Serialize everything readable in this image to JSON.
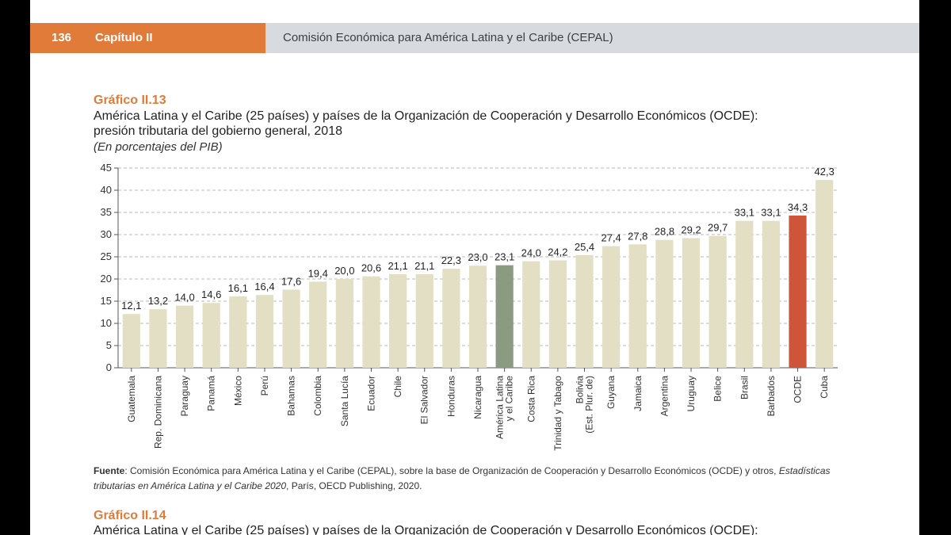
{
  "header": {
    "page_number": "136",
    "chapter": "Capítulo II",
    "publisher": "Comisión Económica para América Latina y el Caribe (CEPAL)"
  },
  "figure": {
    "label": "Gráfico II.13",
    "title_line1": "América Latina y el Caribe (25 países) y países de la Organización de Cooperación y Desarrollo Económicos (OCDE):",
    "title_line2": "presión tributaria del gobierno general, 2018",
    "subtitle": "(En porcentajes del PIB)"
  },
  "source": {
    "label": "Fuente",
    "text_before": "Comisión Económica para América Latina y el Caribe (CEPAL), sobre la base de Organización de Cooperación y Desarrollo Económicos (OCDE) y otros, ",
    "italic": "Estadísticas tributarias en América Latina y el Caribe 2020",
    "text_after": ", París, OECD Publishing, 2020."
  },
  "next_figure": {
    "label": "Gráfico II.14",
    "title_line1": "América Latina y el Caribe (25 países) y países de la Organización de Cooperación y Desarrollo Económicos (OCDE):"
  },
  "colors": {
    "default_bar": "#e3dfc4",
    "regional_average_bar": "#8a9b82",
    "ocde_bar": "#cf553a",
    "accent": "#e07b39"
  },
  "chart_data": {
    "type": "bar",
    "ylim": [
      0,
      45
    ],
    "yticks": [
      0,
      5,
      10,
      15,
      20,
      25,
      30,
      35,
      40,
      45
    ],
    "grid": "horizontal dashed",
    "categories": [
      [
        "Guatemala"
      ],
      [
        "Rep. Dominicana"
      ],
      [
        "Paraguay"
      ],
      [
        "Panamá"
      ],
      [
        "México"
      ],
      [
        "Perú"
      ],
      [
        "Bahamas"
      ],
      [
        "Colombia"
      ],
      [
        "Santa Lucía"
      ],
      [
        "Ecuador"
      ],
      [
        "Chile"
      ],
      [
        "El Salvador"
      ],
      [
        "Honduras"
      ],
      [
        "Nicaragua"
      ],
      [
        "América Latina",
        "y el Caribe"
      ],
      [
        "Costa Rica"
      ],
      [
        "Trinidad y Tabago"
      ],
      [
        "Bolivia",
        "(Est. Plur. de)"
      ],
      [
        "Guyana"
      ],
      [
        "Jamaica"
      ],
      [
        "Argentina"
      ],
      [
        "Uruguay"
      ],
      [
        "Belice"
      ],
      [
        "Brasil"
      ],
      [
        "Barbados"
      ],
      [
        "OCDE"
      ],
      [
        "Cuba"
      ]
    ],
    "values": [
      12.1,
      13.2,
      14.0,
      14.6,
      16.1,
      16.4,
      17.6,
      19.4,
      20.0,
      20.6,
      21.1,
      21.1,
      22.3,
      23.0,
      23.1,
      24.0,
      24.2,
      25.4,
      27.4,
      27.8,
      28.8,
      29.2,
      29.7,
      33.1,
      33.1,
      34.3,
      42.3
    ],
    "value_labels": [
      "12,1",
      "13,2",
      "14,0",
      "14,6",
      "16,1",
      "16,4",
      "17,6",
      "19,4",
      "20,0",
      "20,6",
      "21,1",
      "21,1",
      "22,3",
      "23,0",
      "23,1",
      "24,0",
      "24,2",
      "25,4",
      "27,4",
      "27,8",
      "28,8",
      "29,2",
      "29,7",
      "33,1",
      "33,1",
      "34,3",
      "42,3"
    ],
    "highlight": {
      "América Latina y el Caribe": "regional_average_bar",
      "OCDE": "ocde_bar"
    }
  }
}
